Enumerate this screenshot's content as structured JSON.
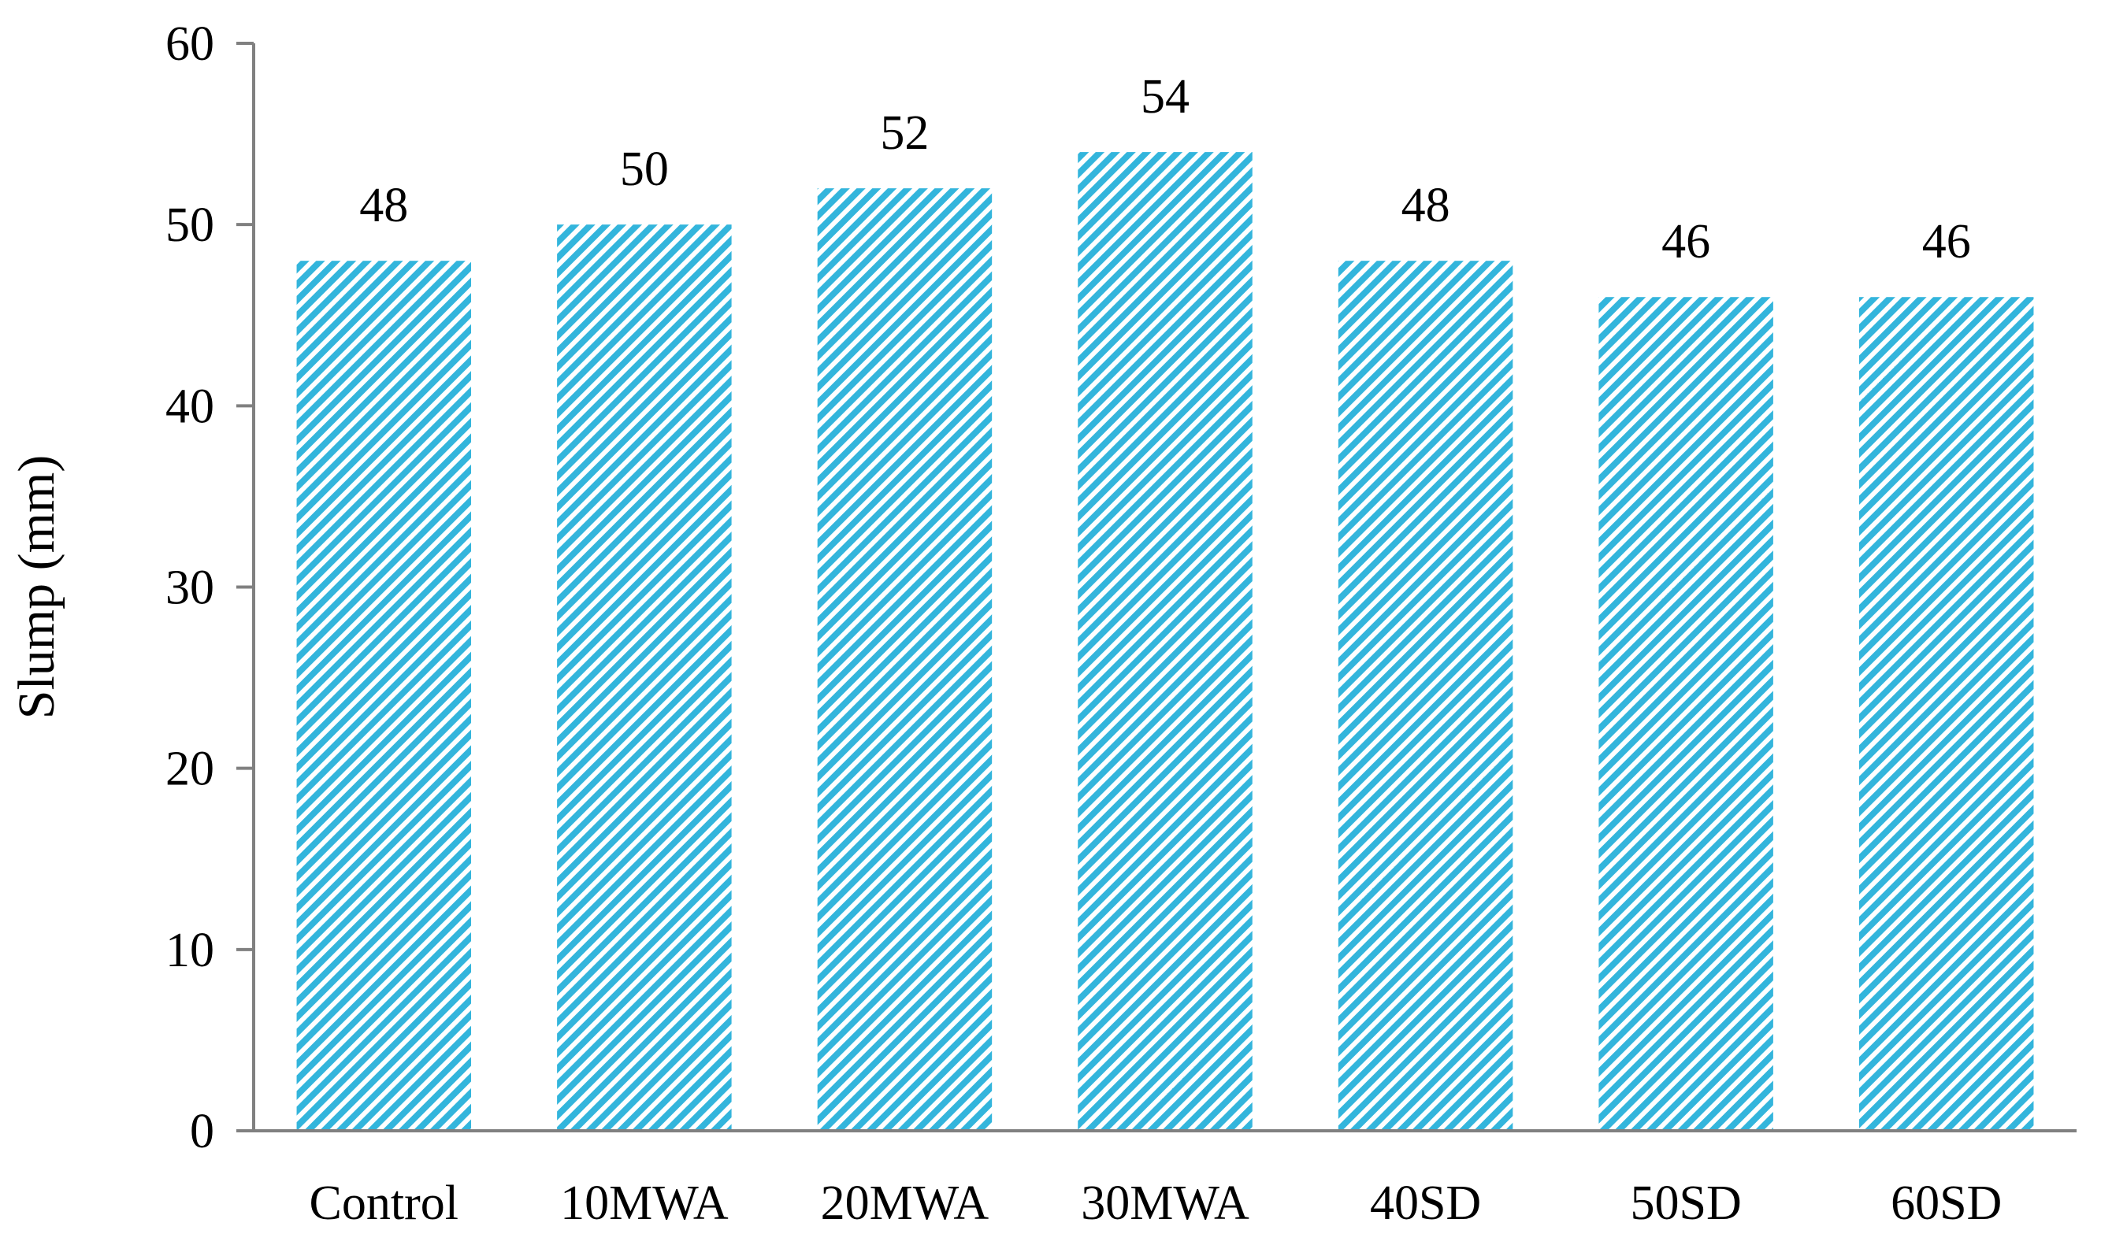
{
  "chart_data": {
    "type": "bar",
    "categories": [
      "Control",
      "10MWA",
      "20MWA",
      "30MWA",
      "40SD",
      "50SD",
      "60SD"
    ],
    "values": [
      48,
      50,
      52,
      54,
      48,
      46,
      46
    ],
    "data_labels": [
      "48",
      "50",
      "52",
      "54",
      "48",
      "46",
      "46"
    ],
    "title": "",
    "xlabel": "",
    "ylabel": "Slump (mm)",
    "ylim": [
      0,
      60
    ],
    "yticks": [
      0,
      10,
      20,
      30,
      40,
      50,
      60
    ],
    "ytick_labels": [
      "0",
      "10",
      "20",
      "30",
      "40",
      "50",
      "60"
    ],
    "grid": false,
    "legend": "none",
    "bar_fill": "diagonal hatch",
    "bar_color": "#33b5dc"
  }
}
